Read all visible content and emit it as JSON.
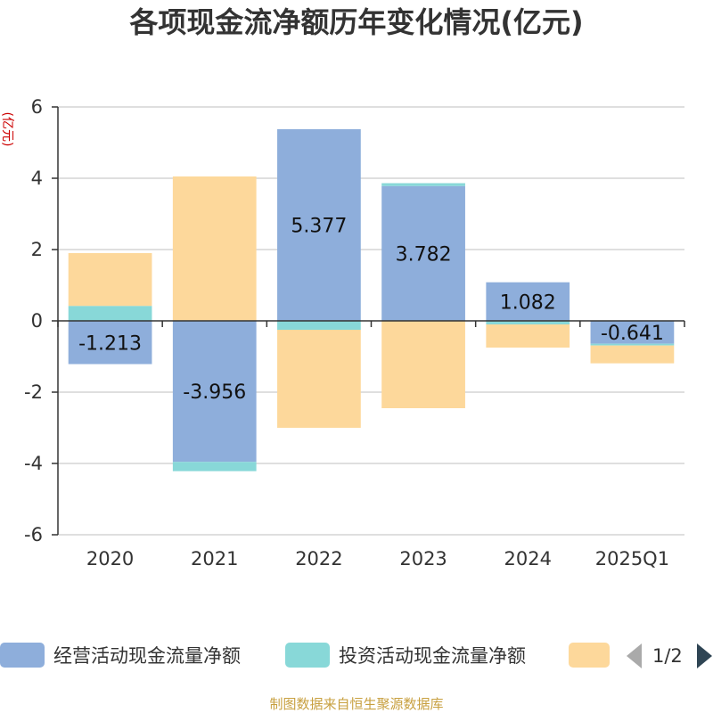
{
  "chart_data": {
    "type": "bar",
    "stacked": true,
    "title": "各项现金流净额历年变化情况(亿元)",
    "unit_label": "(亿元)",
    "categories": [
      "2020",
      "2021",
      "2022",
      "2023",
      "2024",
      "2025Q1"
    ],
    "ylim": [
      -6,
      6
    ],
    "yticks": [
      -6,
      -4,
      -2,
      0,
      2,
      4,
      6
    ],
    "grid": true,
    "series": [
      {
        "name": "经营活动现金流量净额",
        "color": "#8eaedb",
        "values": [
          -1.213,
          -3.956,
          5.377,
          3.782,
          1.082,
          -0.641
        ],
        "labels": [
          "-1.213",
          "-3.956",
          "5.377",
          "3.782",
          "1.082",
          "-0.641"
        ]
      },
      {
        "name": "投资活动现金流量净额",
        "color": "#88d8d8",
        "values": [
          0.42,
          -0.26,
          -0.25,
          0.08,
          -0.1,
          -0.05
        ]
      },
      {
        "name": "",
        "color": "#fdd89b",
        "values": [
          1.48,
          4.05,
          -2.75,
          -2.45,
          -0.65,
          -0.5
        ]
      }
    ],
    "legend": {
      "position": "bottom",
      "page": "1/2"
    },
    "source": "制图数据来自恒生聚源数据库"
  }
}
